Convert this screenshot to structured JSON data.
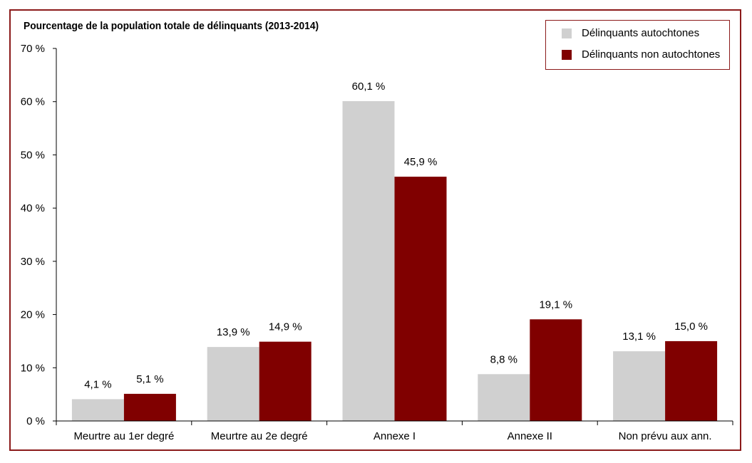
{
  "chart_data": {
    "type": "bar",
    "title": "Pourcentage de la population totale de délinquants (2013-2014)",
    "categories": [
      "Meurtre au 1er degré",
      "Meurtre au 2e degré",
      "Annexe I",
      "Annexe II",
      "Non prévu aux ann."
    ],
    "series": [
      {
        "name": "Délinquants autochtones",
        "color": "#d0d0d0",
        "values": [
          4.1,
          13.9,
          60.1,
          8.8,
          13.1
        ],
        "labels": [
          "4,1 %",
          "13,9 %",
          "60,1 %",
          "8,8 %",
          "13,1 %"
        ]
      },
      {
        "name": "Délinquants non autochtones",
        "color": "#800000",
        "values": [
          5.1,
          14.9,
          45.9,
          19.1,
          15.0
        ],
        "labels": [
          "5,1 %",
          "14,9 %",
          "45,9 %",
          "19,1 %",
          "15,0 %"
        ]
      }
    ],
    "ylim": [
      0,
      70
    ],
    "yticks": [
      0,
      10,
      20,
      30,
      40,
      50,
      60,
      70
    ],
    "ytick_labels": [
      "0 %",
      "10 %",
      "20 %",
      "30 %",
      "40 %",
      "50 %",
      "60 %",
      "70 %"
    ],
    "xlabel": "",
    "ylabel": "",
    "grid": false,
    "legend_position": "top-right"
  },
  "colors": {
    "frame": "#8b1a1a",
    "axis": "#000000"
  }
}
